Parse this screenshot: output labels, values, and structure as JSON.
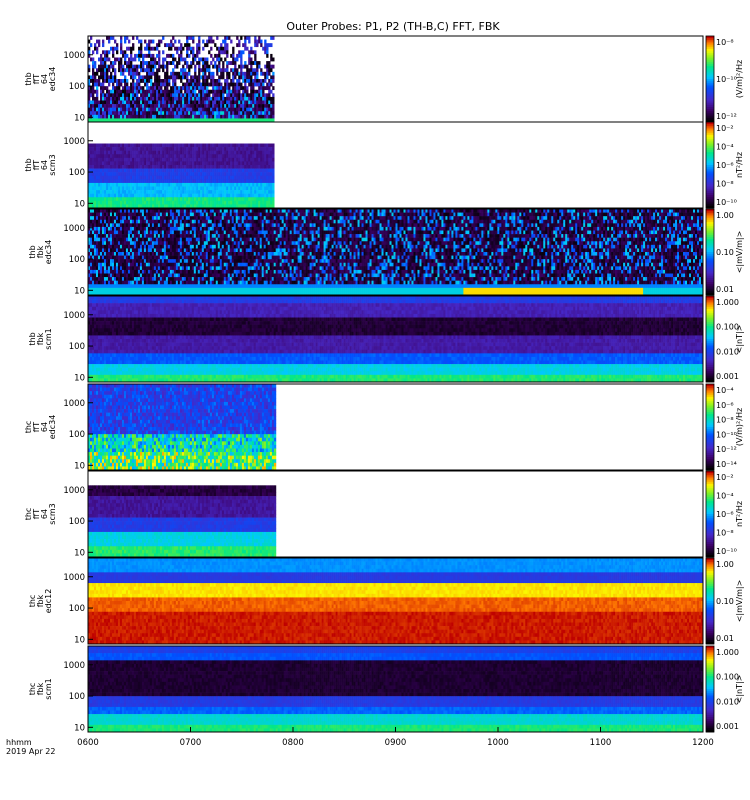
{
  "chart_data": {
    "type": "heatmap",
    "title": "Outer Probes: P1, P2 (TH-B,C) FFT, FBK",
    "x_axis": {
      "label_line1": "hhmm",
      "label_line2": "2019 Apr 22",
      "tick_labels": [
        "0600",
        "0700",
        "0800",
        "0900",
        "1000",
        "1100",
        "1200"
      ],
      "range": [
        "0600",
        "1200"
      ]
    },
    "panels": [
      {
        "ylabel": [
          "thb",
          "ffT",
          "64",
          "edc34"
        ],
        "y_tick_labels": [
          "1000",
          "100",
          "10"
        ],
        "colorbar_label": "(V/m)²/Hz",
        "colorbar_tick_labels": [
          "10⁻⁸",
          "10⁻¹⁰",
          "10⁻¹²"
        ],
        "data_coverage": "0600-0749"
      },
      {
        "ylabel": [
          "thb",
          "ffT",
          "64",
          "scm3"
        ],
        "y_tick_labels": [
          "1000",
          "100",
          "10"
        ],
        "colorbar_label": "nT²/Hz",
        "colorbar_tick_labels": [
          "10⁻²",
          "10⁻⁴",
          "10⁻⁶",
          "10⁻⁸",
          "10⁻¹⁰"
        ],
        "data_coverage": "0600-0749"
      },
      {
        "ylabel": [
          "thb",
          "fbk",
          "edc34"
        ],
        "y_tick_labels": [
          "1000",
          "100",
          "10"
        ],
        "colorbar_label": "<|mV/m|>",
        "colorbar_tick_labels": [
          "1.00",
          "0.10",
          "0.01"
        ],
        "data_coverage": "0600-1200"
      },
      {
        "ylabel": [
          "thb",
          "fbk",
          "scm1"
        ],
        "y_tick_labels": [
          "1000",
          "100",
          "10"
        ],
        "colorbar_label": "<|nT|>",
        "colorbar_tick_labels": [
          "1.000",
          "0.100",
          "0.010",
          "0.001"
        ],
        "data_coverage": "0600-1200"
      },
      {
        "ylabel": [
          "thc",
          "ffT",
          "64",
          "edc34"
        ],
        "y_tick_labels": [
          "1000",
          "100",
          "10"
        ],
        "colorbar_label": "(V/m)²/Hz",
        "colorbar_tick_labels": [
          "10⁻⁴",
          "10⁻⁶",
          "10⁻⁸",
          "10⁻¹⁰",
          "10⁻¹²",
          "10⁻¹⁴"
        ],
        "data_coverage": "0600-0750"
      },
      {
        "ylabel": [
          "thc",
          "ffT",
          "64",
          "scm3"
        ],
        "y_tick_labels": [
          "1000",
          "100",
          "10"
        ],
        "colorbar_label": "nT²/Hz",
        "colorbar_tick_labels": [
          "10⁻²",
          "10⁻⁴",
          "10⁻⁶",
          "10⁻⁸",
          "10⁻¹⁰"
        ],
        "data_coverage": "0600-0750"
      },
      {
        "ylabel": [
          "thc",
          "fbk",
          "edc12"
        ],
        "y_tick_labels": [
          "1000",
          "100",
          "10"
        ],
        "colorbar_label": "<|mV/m|>",
        "colorbar_tick_labels": [
          "1.00",
          "0.10",
          "0.01"
        ],
        "data_coverage": "0600-1200"
      },
      {
        "ylabel": [
          "thc",
          "fbk",
          "scm1"
        ],
        "y_tick_labels": [
          "1000",
          "100",
          "10"
        ],
        "colorbar_label": "<|nT|>",
        "colorbar_tick_labels": [
          "1.000",
          "0.100",
          "0.010",
          "0.001"
        ],
        "data_coverage": "0600-1200"
      }
    ]
  }
}
